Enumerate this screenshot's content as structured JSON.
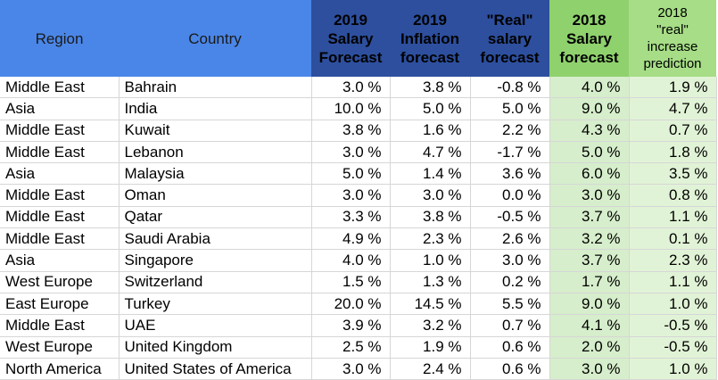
{
  "columns": [
    {
      "key": "region",
      "lines": [
        "Region"
      ]
    },
    {
      "key": "country",
      "lines": [
        "Country"
      ]
    },
    {
      "key": "salary_2019",
      "lines": [
        "2019",
        "Salary",
        "Forecast"
      ]
    },
    {
      "key": "inflation_2019",
      "lines": [
        "2019",
        "Inflation",
        "forecast"
      ]
    },
    {
      "key": "real_salary",
      "lines": [
        "\"Real\"",
        "salary",
        "forecast"
      ]
    },
    {
      "key": "salary_2018",
      "lines": [
        "2018",
        "Salary",
        "forecast"
      ]
    },
    {
      "key": "real_increase_2018",
      "lines": [
        "2018",
        "\"real\"",
        "increase",
        "prediction"
      ]
    }
  ],
  "rows": [
    [
      "Middle East",
      "Bahrain",
      "3.0 %",
      "3.8 %",
      "-0.8 %",
      "4.0 %",
      "1.9 %"
    ],
    [
      "Asia",
      "India",
      "10.0 %",
      "5.0 %",
      "5.0 %",
      "9.0 %",
      "4.7 %"
    ],
    [
      "Middle East",
      "Kuwait",
      "3.8 %",
      "1.6 %",
      "2.2 %",
      "4.3 %",
      "0.7 %"
    ],
    [
      "Middle East",
      "Lebanon",
      "3.0 %",
      "4.7 %",
      "-1.7 %",
      "5.0 %",
      "1.8 %"
    ],
    [
      "Asia",
      "Malaysia",
      "5.0 %",
      "1.4 %",
      "3.6 %",
      "6.0 %",
      "3.5 %"
    ],
    [
      "Middle East",
      "Oman",
      "3.0 %",
      "3.0 %",
      "0.0 %",
      "3.0 %",
      "0.8 %"
    ],
    [
      "Middle East",
      "Qatar",
      "3.3 %",
      "3.8 %",
      "-0.5 %",
      "3.7 %",
      "1.1 %"
    ],
    [
      "Middle East",
      "Saudi Arabia",
      "4.9 %",
      "2.3 %",
      "2.6 %",
      "3.2 %",
      "0.1 %"
    ],
    [
      "Asia",
      "Singapore",
      "4.0 %",
      "1.0 %",
      "3.0 %",
      "3.7 %",
      "2.3 %"
    ],
    [
      "West Europe",
      "Switzerland",
      "1.5 %",
      "1.3 %",
      "0.2 %",
      "1.7 %",
      "1.1 %"
    ],
    [
      "East Europe",
      "Turkey",
      "20.0 %",
      "14.5 %",
      "5.5 %",
      "9.0 %",
      "1.0 %"
    ],
    [
      "Middle East",
      "UAE",
      "3.9 %",
      "3.2 %",
      "0.7 %",
      "4.1 %",
      "-0.5 %"
    ],
    [
      "West Europe",
      "United Kingdom",
      "2.5 %",
      "1.9 %",
      "0.6 %",
      "2.0 %",
      "-0.5 %"
    ],
    [
      "North America",
      "United States of America",
      "3.0 %",
      "2.4 %",
      "0.6 %",
      "3.0 %",
      "1.0 %"
    ]
  ],
  "colors": {
    "header_blue": "#4a86e8",
    "header_dark_blue": "#2d4f9e",
    "header_green": "#8fd16d",
    "header_light_green": "#a6dd86",
    "cell_green": "#d6eecb",
    "cell_light_green": "#e1f3d6"
  }
}
